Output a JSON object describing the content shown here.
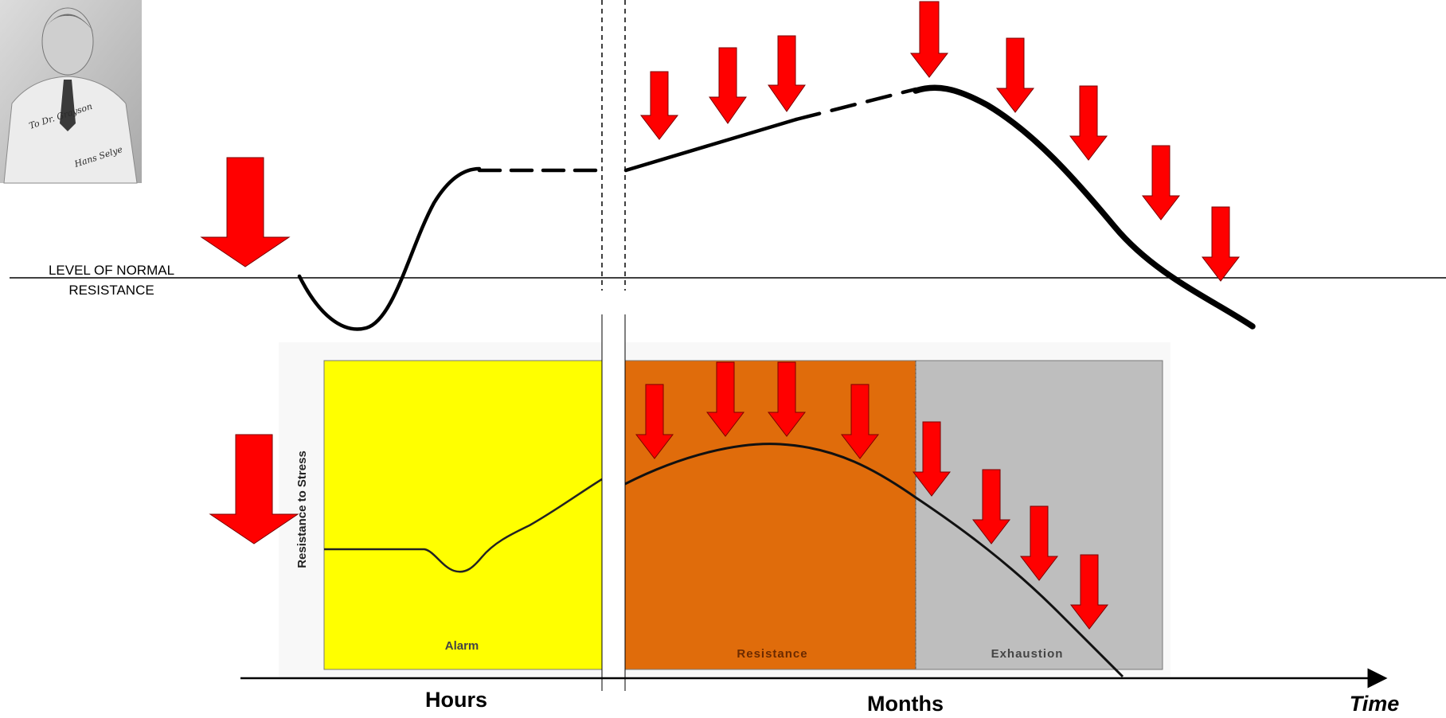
{
  "normal_level_label_line1": "LEVEL OF NORMAL",
  "normal_level_label_line2": "RESISTANCE",
  "x_axis": {
    "hours": "Hours",
    "months": "Months",
    "time": "Time"
  },
  "inner_chart": {
    "ylabel": "Resistance to Stress",
    "phases": [
      "Alarm",
      "Resistance",
      "Exhaustion"
    ]
  },
  "portrait": {
    "signature_line1": "To Dr. Grayson",
    "signature_line2": "Hans Selye"
  },
  "colors": {
    "arrow": "#ff0000",
    "alarm_phase": "#ffff00",
    "resistance_phase": "#e06c0b",
    "exhaustion_phase": "#bebebe",
    "curve": "#000000"
  }
}
